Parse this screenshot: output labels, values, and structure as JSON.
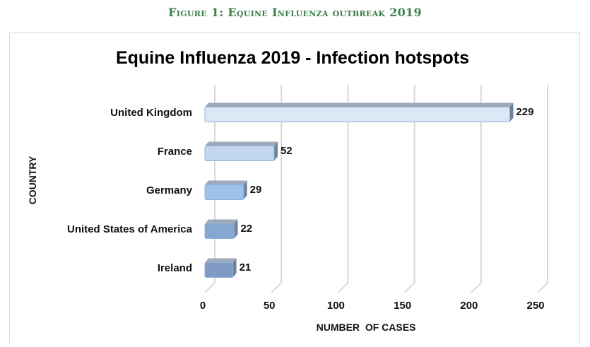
{
  "figure_caption": "Figure 1: Equine Influenza outbreak 2019",
  "chart_data": {
    "type": "bar",
    "orientation": "horizontal",
    "style": "3d",
    "title": "Equine Influenza 2019 - Infection hotspots",
    "xlabel": "NUMBER  OF CASES",
    "ylabel": "COUNTRY",
    "categories": [
      "United Kingdom",
      "France",
      "Germany",
      "United States of America",
      "Ireland"
    ],
    "values": [
      229,
      52,
      29,
      22,
      21
    ],
    "value_labels": [
      "229",
      "52",
      "29",
      "22",
      "21"
    ],
    "xlim": [
      0,
      250
    ],
    "xticks": [
      "0",
      "50",
      "100",
      "150",
      "200",
      "250"
    ],
    "grid": true,
    "colors": [
      "#dde8f7",
      "#c3d6f0",
      "#9dc1ea",
      "#86a7d1",
      "#7f9bc4"
    ]
  }
}
